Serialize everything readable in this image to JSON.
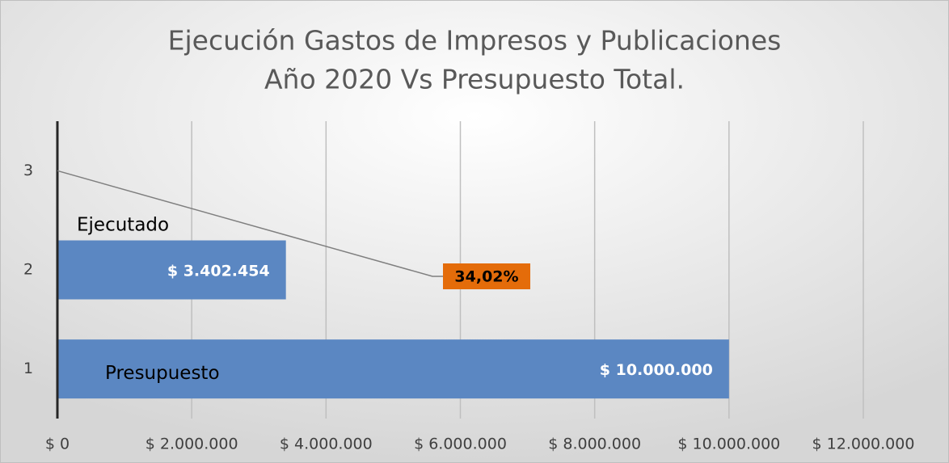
{
  "chart_data": {
    "type": "bar",
    "orientation": "horizontal",
    "title": [
      "Ejecución Gastos de Impresos y Publicaciones",
      "Año 2020 Vs Presupuesto Total."
    ],
    "categories": [
      "1",
      "2",
      "3"
    ],
    "values": [
      10000000,
      3402454,
      null
    ],
    "value_labels": [
      "$ 10.000.000",
      "$ 3.402.454",
      null
    ],
    "bar_labels": [
      "Presupuesto",
      "Ejecutado",
      null
    ],
    "color": "#5b87c2",
    "annotation": {
      "text": "34,02%",
      "color": "#e46c0a"
    },
    "xlim": [
      0,
      12000000
    ],
    "xticks": [
      {
        "value": 0,
        "label": "$ 0"
      },
      {
        "value": 2000000,
        "label": "$ 2.000.000"
      },
      {
        "value": 4000000,
        "label": "$ 4.000.000"
      },
      {
        "value": 6000000,
        "label": "$ 6.000.000"
      },
      {
        "value": 8000000,
        "label": "$ 8.000.000"
      },
      {
        "value": 10000000,
        "label": "$ 10.000.000"
      },
      {
        "value": 12000000,
        "label": "$ 12.000.000"
      }
    ],
    "grid": true
  }
}
